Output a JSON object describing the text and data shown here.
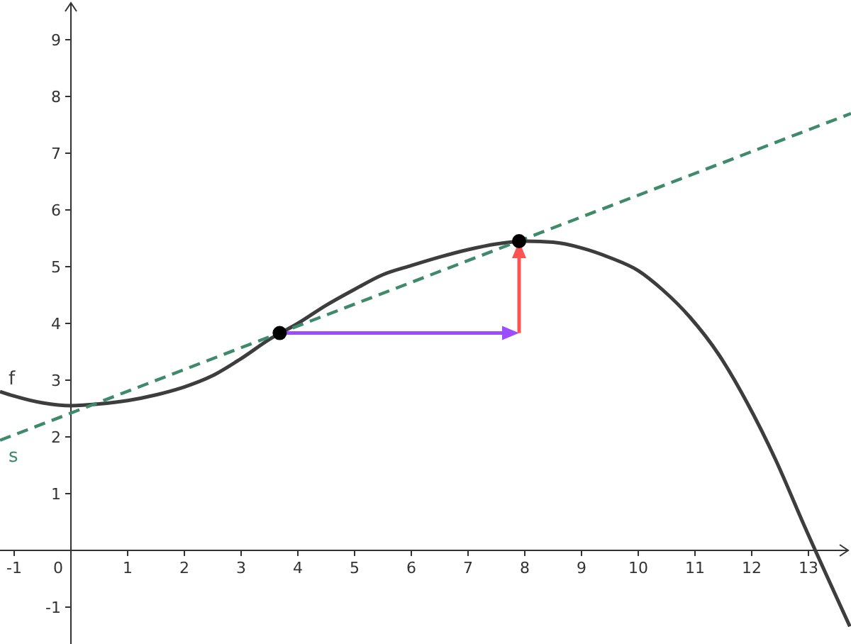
{
  "chart_data": {
    "type": "line",
    "xlim": [
      -1.25,
      13.75
    ],
    "ylim": [
      -1.65,
      9.7
    ],
    "xticks": [
      -1,
      0,
      1,
      2,
      3,
      4,
      5,
      6,
      7,
      8,
      9,
      10,
      11,
      12,
      13
    ],
    "yticks": [
      -1,
      1,
      2,
      3,
      4,
      5,
      6,
      7,
      8,
      9
    ],
    "grid": false,
    "series": [
      {
        "name": "f",
        "color": "#3d3d3d",
        "line_style": "solid",
        "x": [
          -1.25,
          -1,
          -0.5,
          0,
          0.5,
          1,
          1.5,
          2,
          2.5,
          3,
          3.5,
          4,
          4.5,
          5,
          5.5,
          6,
          6.5,
          7,
          7.5,
          8,
          8.5,
          9,
          9.5,
          10,
          10.42,
          10.92,
          11.42,
          11.92,
          12.42,
          12.92,
          13.73
        ],
        "values": [
          2.8,
          2.72,
          2.6,
          2.55,
          2.58,
          2.64,
          2.74,
          2.88,
          3.08,
          3.38,
          3.72,
          4.0,
          4.32,
          4.6,
          4.86,
          5.02,
          5.17,
          5.3,
          5.4,
          5.45,
          5.43,
          5.33,
          5.16,
          4.93,
          4.6,
          4.1,
          3.45,
          2.6,
          1.6,
          0.45,
          -1.34
        ]
      },
      {
        "name": "s",
        "color": "#3e8a6a",
        "line_style": "dashed",
        "x": [
          -1.25,
          13.75
        ],
        "values": [
          1.94,
          7.7
        ]
      },
      {
        "type": "scatter",
        "color": "#000000",
        "marker": "circle",
        "x": [
          3.68,
          7.9
        ],
        "values": [
          3.83,
          5.45
        ]
      }
    ]
  }
}
